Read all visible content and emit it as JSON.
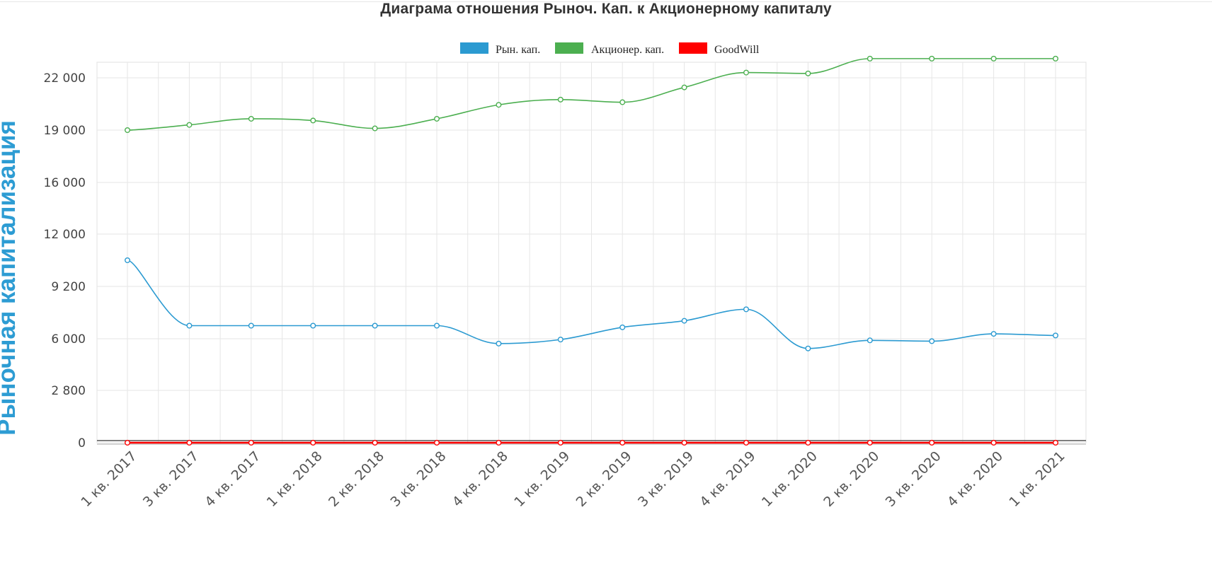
{
  "chart_data": {
    "type": "line",
    "title": "Диаграма отношения Рыноч. Кап. к Акционерному капиталу",
    "ylabel": "Рыночная капитализация",
    "xlabel": "",
    "categories": [
      "1 кв. 2017",
      "3 кв. 2017",
      "4 кв. 2017",
      "1 кв. 2018",
      "2 кв. 2018",
      "3 кв. 2018",
      "4 кв. 2018",
      "1 кв. 2019",
      "2 кв. 2019",
      "3 кв. 2019",
      "4 кв. 2019",
      "1 кв. 2020",
      "2 кв. 2020",
      "3 кв. 2020",
      "4 кв. 2020",
      "1 кв. 2021"
    ],
    "y_ticks": [
      0,
      2800,
      6000,
      9200,
      12000,
      16000,
      19000,
      22000
    ],
    "y_tick_labels": [
      "0",
      "2 800",
      "6 000",
      "9 200",
      "12 000",
      "16 000",
      "19 000",
      "22 000"
    ],
    "grid": true,
    "legend_position": "top-center",
    "series": [
      {
        "name": "Рын. кап.",
        "color": "#2b9ad1",
        "values": [
          10600,
          6800,
          6800,
          6800,
          6800,
          6800,
          5700,
          5950,
          6700,
          7100,
          7800,
          5400,
          5900,
          5850,
          6300,
          6200
        ]
      },
      {
        "name": "Акционер. кап.",
        "color": "#4caf50",
        "values": [
          19000,
          19300,
          19650,
          19550,
          19100,
          19650,
          20450,
          20750,
          20600,
          21450,
          22300,
          22250,
          23100,
          23100,
          23100,
          23100
        ]
      },
      {
        "name": "GoodWill",
        "color": "#ff0000",
        "values": [
          0,
          0,
          0,
          0,
          0,
          0,
          0,
          0,
          0,
          0,
          0,
          0,
          0,
          0,
          0,
          0
        ]
      }
    ]
  }
}
